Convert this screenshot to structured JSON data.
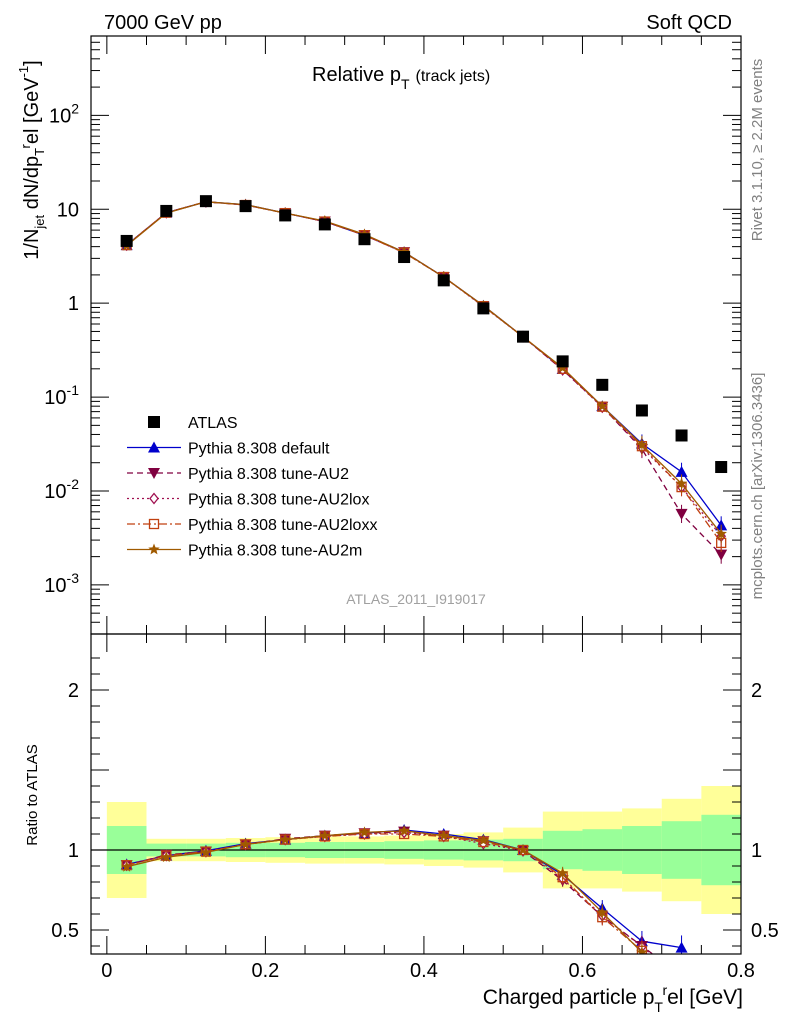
{
  "header": {
    "left": "7000 GeV pp",
    "right": "Soft QCD"
  },
  "side_labels": {
    "rivet": "Rivet 3.1.10, ≥ 2.2M events",
    "mcplots": "mcplots.cern.ch [arXiv:1306.3436]"
  },
  "colors": {
    "atlas": "#000000",
    "default": "#0000cc",
    "au2": "#800040",
    "au2lox": "#a01050",
    "au2loxx": "#c04010",
    "au2m": "#a05a00",
    "band_inner": "#99ff99",
    "band_outer": "#ffff99"
  },
  "chart_data": [
    {
      "type": "scatter",
      "title": {
        "main": "Relative p",
        "sub": "T",
        "extra": "(track jets)"
      },
      "ylabel": "1/N_jet dN/dp_T^rel [GeV^-1]",
      "analysis_label": "ATLAS_2011_I919017",
      "yscale": "log",
      "xlim": [
        -0.02,
        0.8
      ],
      "ylim": [
        0.0003,
        700
      ],
      "x": [
        0.025,
        0.075,
        0.125,
        0.175,
        0.225,
        0.275,
        0.325,
        0.375,
        0.425,
        0.475,
        0.525,
        0.575,
        0.625,
        0.675,
        0.725,
        0.775
      ],
      "y_ticks": [
        {
          "value": 0.001,
          "base": "10",
          "exp": "-3"
        },
        {
          "value": 0.01,
          "base": "10",
          "exp": "-2"
        },
        {
          "value": 0.1,
          "base": "10",
          "exp": "-1"
        },
        {
          "value": 1,
          "base": "1",
          "exp": ""
        },
        {
          "value": 10,
          "base": "10",
          "exp": ""
        },
        {
          "value": 100,
          "base": "10",
          "exp": "2"
        }
      ],
      "series": [
        {
          "name": "ATLAS",
          "marker": "square",
          "values": [
            4.6,
            9.6,
            12.2,
            10.8,
            8.6,
            6.9,
            4.8,
            3.1,
            1.75,
            0.88,
            0.44,
            0.24,
            0.135,
            0.072,
            0.039,
            0.018
          ]
        },
        {
          "name": "Pythia 8.308 default",
          "marker": "triangle-up",
          "dash": "",
          "values": [
            4.15,
            9.2,
            12.0,
            11.2,
            9.1,
            7.4,
            5.3,
            3.5,
            1.9,
            0.94,
            0.44,
            0.2,
            0.08,
            0.032,
            0.016,
            0.0043
          ]
        },
        {
          "name": "Pythia 8.308 tune-AU2",
          "marker": "triangle-down",
          "dash": "6,4",
          "values": [
            4.15,
            9.2,
            12.0,
            11.1,
            9.1,
            7.4,
            5.3,
            3.5,
            1.9,
            0.93,
            0.44,
            0.195,
            0.079,
            0.028,
            0.0057,
            0.0021
          ]
        },
        {
          "name": "Pythia 8.308 tune-AU2lox",
          "marker": "diamond-open",
          "dash": "2,3",
          "values": [
            4.15,
            9.2,
            12.0,
            11.1,
            9.1,
            7.4,
            5.3,
            3.45,
            1.9,
            0.92,
            0.44,
            0.195,
            0.078,
            0.029,
            0.011,
            0.0033
          ]
        },
        {
          "name": "Pythia 8.308 tune-AU2loxx",
          "marker": "square-open",
          "dash": "8,3,2,3",
          "values": [
            4.15,
            9.2,
            12.0,
            11.1,
            9.1,
            7.4,
            5.3,
            3.45,
            1.9,
            0.93,
            0.44,
            0.2,
            0.079,
            0.03,
            0.011,
            0.0028
          ]
        },
        {
          "name": "Pythia 8.308 tune-AU2m",
          "marker": "star",
          "dash": "",
          "values": [
            4.1,
            9.1,
            12.0,
            11.2,
            9.1,
            7.5,
            5.4,
            3.5,
            1.9,
            0.94,
            0.44,
            0.205,
            0.08,
            0.031,
            0.012,
            0.0035
          ]
        }
      ]
    },
    {
      "type": "line",
      "ylabel": "Ratio to ATLAS",
      "xlabel": "Charged particle p_T^rel [GeV]",
      "xlim": [
        -0.02,
        0.8
      ],
      "ylim": [
        0.35,
        2.35
      ],
      "x_ticks": [
        "0",
        "0.2",
        "0.4",
        "0.6",
        "0.8"
      ],
      "y_ticks": [
        "0.5",
        "1",
        "2"
      ],
      "band_bins": [
        [
          0.0,
          0.05
        ],
        [
          0.05,
          0.1
        ],
        [
          0.1,
          0.15
        ],
        [
          0.15,
          0.2
        ],
        [
          0.2,
          0.25
        ],
        [
          0.25,
          0.3
        ],
        [
          0.3,
          0.35
        ],
        [
          0.35,
          0.4
        ],
        [
          0.4,
          0.45
        ],
        [
          0.45,
          0.5
        ],
        [
          0.5,
          0.55
        ],
        [
          0.55,
          0.6
        ],
        [
          0.6,
          0.65
        ],
        [
          0.65,
          0.7
        ],
        [
          0.7,
          0.75
        ],
        [
          0.75,
          0.8
        ]
      ],
      "band_inner": [
        0.15,
        0.04,
        0.04,
        0.045,
        0.045,
        0.05,
        0.05,
        0.055,
        0.06,
        0.065,
        0.07,
        0.12,
        0.13,
        0.15,
        0.18,
        0.22
      ],
      "band_outer": [
        0.3,
        0.07,
        0.07,
        0.075,
        0.08,
        0.085,
        0.085,
        0.09,
        0.1,
        0.11,
        0.14,
        0.24,
        0.24,
        0.26,
        0.32,
        0.4
      ],
      "series": [
        {
          "name": "Pythia 8.308 default",
          "values": [
            0.91,
            0.965,
            0.995,
            1.04,
            1.065,
            1.09,
            1.105,
            1.125,
            1.1,
            1.065,
            1.0,
            0.845,
            0.635,
            0.43,
            0.39
          ]
        },
        {
          "name": "Pythia 8.308 tune-AU2",
          "values": [
            0.905,
            0.97,
            0.99,
            1.035,
            1.07,
            1.09,
            1.105,
            1.115,
            1.09,
            1.055,
            0.995,
            0.81,
            0.585,
            0.4
          ]
        },
        {
          "name": "Pythia 8.308 tune-AU2lox",
          "values": [
            0.905,
            0.965,
            0.99,
            1.035,
            1.065,
            1.085,
            1.1,
            1.11,
            1.085,
            1.04,
            0.995,
            0.82,
            0.59,
            0.395
          ]
        },
        {
          "name": "Pythia 8.308 tune-AU2loxx",
          "values": [
            0.905,
            0.965,
            0.99,
            1.035,
            1.065,
            1.085,
            1.1,
            1.1,
            1.085,
            1.05,
            1.0,
            0.83,
            0.58,
            0.37
          ]
        },
        {
          "name": "Pythia 8.308 tune-AU2m",
          "values": [
            0.895,
            0.955,
            0.985,
            1.035,
            1.065,
            1.09,
            1.11,
            1.12,
            1.09,
            1.06,
            1.0,
            0.855,
            0.61,
            0.36
          ]
        }
      ]
    }
  ]
}
